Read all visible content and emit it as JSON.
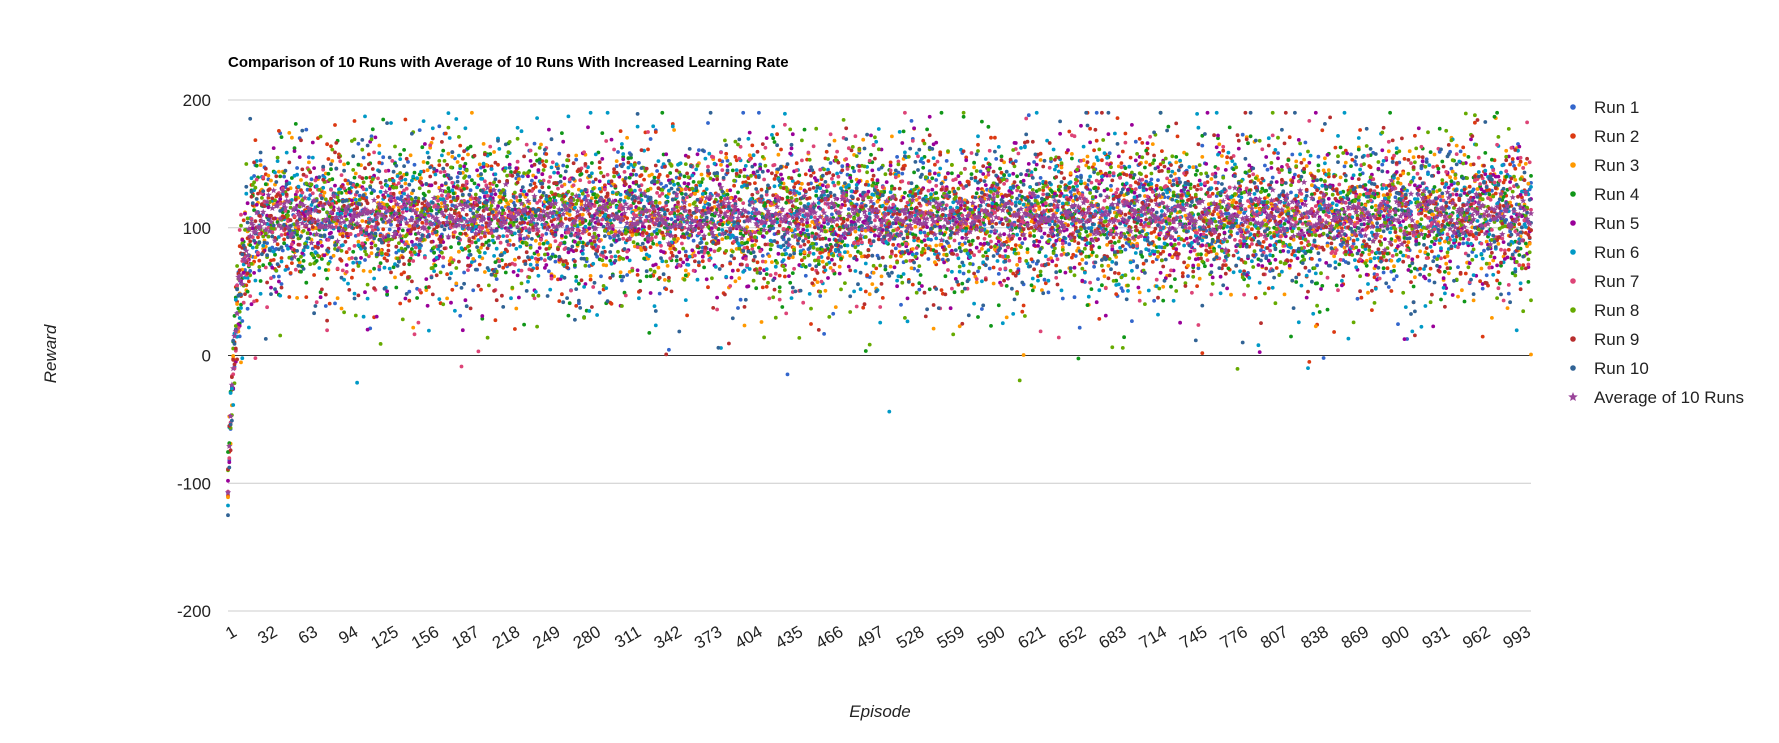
{
  "chart_data": {
    "type": "scatter",
    "title": "Comparison of 10 Runs with Average of 10 Runs With Increased Learning Rate",
    "xlabel": "Episode",
    "ylabel": "Reward",
    "xlim": [
      1,
      1000
    ],
    "ylim": [
      -200,
      200
    ],
    "y_ticks": [
      "200",
      "100",
      "0",
      "-100",
      "-200"
    ],
    "x_ticks": [
      "1",
      "32",
      "63",
      "94",
      "125",
      "156",
      "187",
      "218",
      "249",
      "280",
      "311",
      "342",
      "373",
      "404",
      "435",
      "466",
      "497",
      "528",
      "559",
      "590",
      "621",
      "652",
      "683",
      "714",
      "745",
      "776",
      "807",
      "838",
      "869",
      "900",
      "931",
      "962",
      "993"
    ],
    "grid": true,
    "legend_position": "right",
    "series": [
      {
        "name": "Run 1",
        "color": "#3366cc",
        "marker": "dot",
        "start": -105,
        "plateau": 110,
        "spread": 28,
        "seed": 11
      },
      {
        "name": "Run 2",
        "color": "#dc3912",
        "marker": "dot",
        "start": -100,
        "plateau": 108,
        "spread": 30,
        "seed": 23
      },
      {
        "name": "Run 3",
        "color": "#ff9900",
        "marker": "dot",
        "start": -102,
        "plateau": 109,
        "spread": 27,
        "seed": 37
      },
      {
        "name": "Run 4",
        "color": "#109618",
        "marker": "dot",
        "start": -90,
        "plateau": 111,
        "spread": 29,
        "seed": 41
      },
      {
        "name": "Run 5",
        "color": "#990099",
        "marker": "dot",
        "start": -110,
        "plateau": 110,
        "spread": 28,
        "seed": 53
      },
      {
        "name": "Run 6",
        "color": "#0099c6",
        "marker": "dot",
        "start": -108,
        "plateau": 107,
        "spread": 31,
        "seed": 67
      },
      {
        "name": "Run 7",
        "color": "#dd4477",
        "marker": "dot",
        "start": -104,
        "plateau": 110,
        "spread": 27,
        "seed": 71
      },
      {
        "name": "Run 8",
        "color": "#66aa00",
        "marker": "dot",
        "start": -95,
        "plateau": 109,
        "spread": 30,
        "seed": 83
      },
      {
        "name": "Run 9",
        "color": "#b82e2e",
        "marker": "dot",
        "start": -101,
        "plateau": 110,
        "spread": 28,
        "seed": 97
      },
      {
        "name": "Run 10",
        "color": "#316395",
        "marker": "dot",
        "start": -112,
        "plateau": 108,
        "spread": 29,
        "seed": 101
      },
      {
        "name": "Average of 10 Runs",
        "color": "#994499",
        "marker": "star",
        "start": -103,
        "plateau": 109,
        "spread": 9,
        "seed": 113
      }
    ]
  }
}
